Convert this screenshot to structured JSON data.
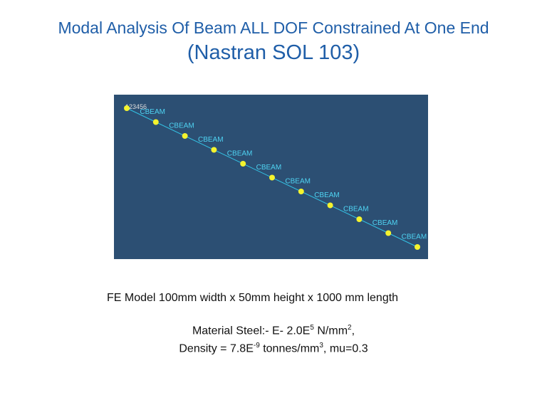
{
  "slide": {
    "title_line1": "Modal Analysis Of Beam ALL DOF Constrained At One End",
    "title_line2": "(Nastran SOL  103)"
  },
  "model_view": {
    "constraint_label": "123456",
    "element_label": "CBEAM",
    "element_count": 10,
    "colors": {
      "background": "#2c4f73",
      "beam_line": "#33c4e6",
      "node": "#f4f32e",
      "label": "#4fd3f2",
      "constraint_label": "#dddddd"
    }
  },
  "caption": "FE Model  100mm width x 50mm height x 1000 mm  length",
  "material": {
    "line1_prefix": "Material Steel:- E- 2.0E",
    "line1_sup": "5",
    "line1_mid": " N/mm",
    "line1_sup2": "2",
    "line1_suffix": ",",
    "line2_prefix": "Density = 7.8E",
    "line2_sup": "-9",
    "line2_mid": " tonnes/mm",
    "line2_sup2": "3",
    "line2_suffix": ", mu=0.3"
  }
}
